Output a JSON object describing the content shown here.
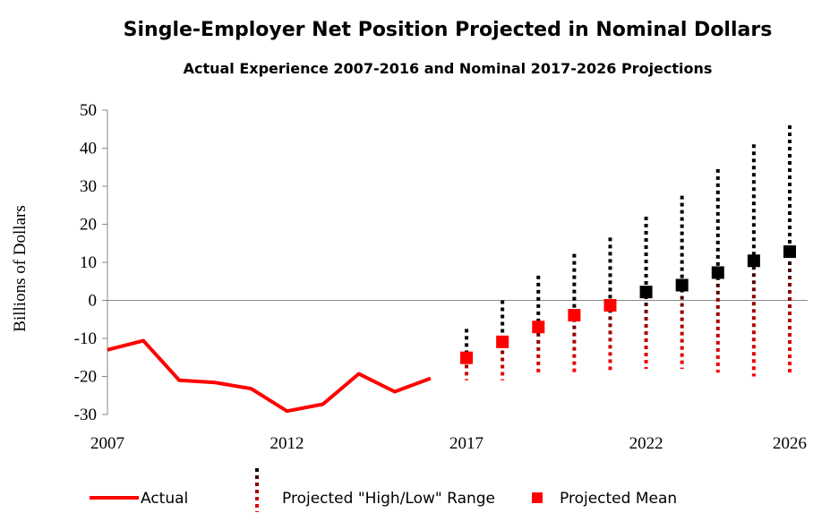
{
  "chart_data": {
    "type": "line",
    "title": "Single-Employer Net Position Projected in Nominal Dollars",
    "subtitle": "Actual Experience 2007-2016 and Nominal 2017-2026 Projections",
    "y_label": "Billions of Dollars",
    "xlim": [
      2007,
      2026
    ],
    "xticks": [
      2007,
      2012,
      2017,
      2022,
      2026
    ],
    "ylim": [
      -30,
      50
    ],
    "yticks": [
      -30,
      -20,
      -10,
      0,
      10,
      20,
      30,
      40,
      50
    ],
    "actual": {
      "name": "Actual",
      "color": "#ff0000",
      "x": [
        2007,
        2008,
        2009,
        2010,
        2011,
        2012,
        2013,
        2014,
        2015,
        2016
      ],
      "values": [
        -13,
        -10.6,
        -21,
        -21.6,
        -23.2,
        -29.1,
        -27.3,
        -19.3,
        -24,
        -20.5
      ]
    },
    "range": {
      "name": "Projected \"High/Low\" Range",
      "color_high": "#000000",
      "color_low": "#ff0000",
      "x": [
        2017,
        2018,
        2019,
        2020,
        2021,
        2022,
        2023,
        2024,
        2025,
        2026
      ],
      "high": [
        -7.5,
        0,
        6.5,
        12.2,
        16.5,
        22,
        27.5,
        34.5,
        41,
        46
      ],
      "low": [
        -21,
        -21,
        -19,
        -19,
        -18.5,
        -18,
        -18,
        -19,
        -20,
        -19
      ]
    },
    "mean": {
      "name": "Projected Mean",
      "color": "#ff0000",
      "x": [
        2017,
        2018,
        2019,
        2020,
        2021,
        2022,
        2023,
        2024,
        2025,
        2026
      ],
      "values": [
        -15.1,
        -10.9,
        -7,
        -3.9,
        -1.3,
        2.2,
        4,
        7.3,
        10.4,
        12.8
      ],
      "marker_colors": [
        "#ff0000",
        "#ff0000",
        "#ff0000",
        "#ff0000",
        "#ff0000",
        "#000000",
        "#000000",
        "#000000",
        "#000000",
        "#000000"
      ]
    }
  }
}
